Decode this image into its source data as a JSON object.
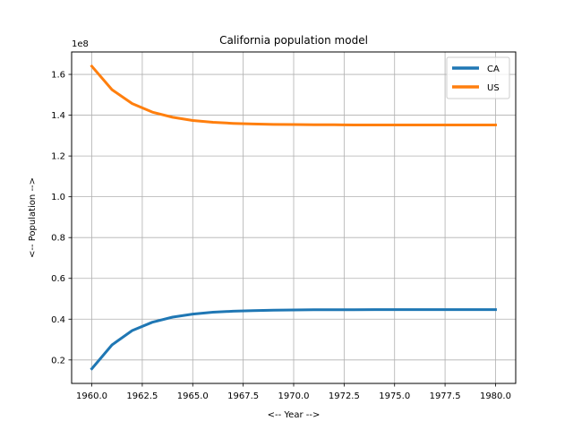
{
  "chart_data": {
    "type": "line",
    "title": "California population model",
    "xlabel": "<-- Year -->",
    "ylabel": "<-- Population -->",
    "y_multiplier_label": "1e8",
    "x": [
      1960,
      1961,
      1962,
      1963,
      1964,
      1965,
      1966,
      1967,
      1968,
      1969,
      1970,
      1971,
      1972,
      1973,
      1974,
      1975,
      1976,
      1977,
      1978,
      1979,
      1980
    ],
    "series": [
      {
        "name": "CA",
        "color": "#1f77b4",
        "values": [
          15700000,
          27400000,
          34400000,
          38500000,
          41000000,
          42500000,
          43400000,
          43900000,
          44200000,
          44400000,
          44500000,
          44600000,
          44600000,
          44600000,
          44700000,
          44700000,
          44700000,
          44700000,
          44700000,
          44700000,
          44700000
        ]
      },
      {
        "name": "US",
        "color": "#ff7f0e",
        "values": [
          164000000,
          152500000,
          145700000,
          141500000,
          139000000,
          137400000,
          136500000,
          136000000,
          135700000,
          135500000,
          135400000,
          135300000,
          135300000,
          135200000,
          135200000,
          135200000,
          135200000,
          135200000,
          135200000,
          135200000,
          135200000
        ]
      }
    ],
    "xlim": [
      1959.0,
      1981.0
    ],
    "ylim": [
      8500000,
      171000000
    ],
    "x_ticks": [
      1960.0,
      1962.5,
      1965.0,
      1967.5,
      1970.0,
      1972.5,
      1975.0,
      1977.5,
      1980.0
    ],
    "x_tick_labels": [
      "1960.0",
      "1962.5",
      "1965.0",
      "1967.5",
      "1970.0",
      "1972.5",
      "1975.0",
      "1977.5",
      "1980.0"
    ],
    "y_ticks": [
      20000000,
      40000000,
      60000000,
      80000000,
      100000000,
      120000000,
      140000000,
      160000000
    ],
    "y_tick_labels": [
      "0.2",
      "0.4",
      "0.6",
      "0.8",
      "1.0",
      "1.2",
      "1.4",
      "1.6"
    ],
    "grid": true,
    "legend_position": "top-right"
  }
}
